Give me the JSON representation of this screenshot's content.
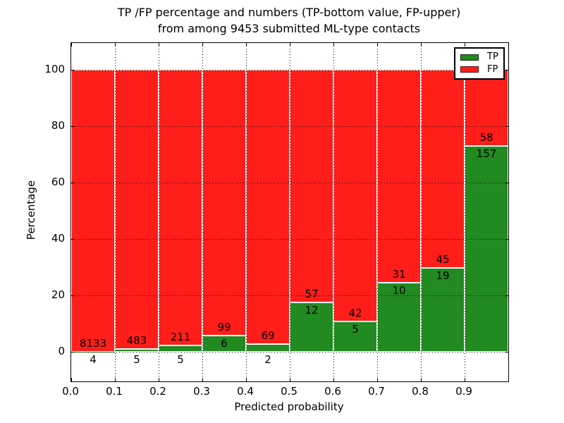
{
  "title": {
    "line1": "TP /FP percentage and numbers (TP-bottom value, FP-upper)",
    "line2": "from among 9453 submitted ML-type contacts"
  },
  "axes": {
    "ylabel": "Percentage",
    "xlabel": "Predicted probability",
    "y_ticks": [
      "0",
      "20",
      "40",
      "60",
      "80",
      "100"
    ],
    "y_tick_values": [
      0,
      20,
      40,
      60,
      80,
      100
    ],
    "x_ticks": [
      "0.0",
      "0.1",
      "0.2",
      "0.3",
      "0.4",
      "0.5",
      "0.6",
      "0.7",
      "0.8",
      "0.9"
    ],
    "ylim": [
      -10,
      110
    ],
    "xlim": [
      0.0,
      1.0
    ],
    "grid": "dotted, drawn above bars"
  },
  "colors": {
    "tp": "#218a21",
    "fp": "#ff1e1a",
    "bar_edge": "#ffffff",
    "text": "#000000",
    "background": "#ffffff"
  },
  "legend": {
    "position": "upper right",
    "items": [
      {
        "label": "TP",
        "color": "#218a21"
      },
      {
        "label": "FP",
        "color": "#ff1e1a"
      }
    ]
  },
  "chart_data": {
    "type": "bar",
    "stacked": true,
    "normalized_to_percent": 100,
    "total_contacts": 9453,
    "categories": [
      "0.0-0.1",
      "0.1-0.2",
      "0.2-0.3",
      "0.3-0.4",
      "0.4-0.5",
      "0.5-0.6",
      "0.6-0.7",
      "0.7-0.8",
      "0.8-0.9",
      "0.9-1.0"
    ],
    "series": [
      {
        "name": "TP",
        "values": [
          4,
          5,
          5,
          6,
          2,
          12,
          5,
          10,
          19,
          157
        ]
      },
      {
        "name": "FP",
        "values": [
          8133,
          483,
          211,
          99,
          69,
          57,
          42,
          31,
          45,
          58
        ]
      }
    ],
    "tp_percent": [
      0.05,
      1.02,
      2.31,
      5.71,
      2.82,
      17.39,
      10.64,
      24.39,
      29.69,
      73.02
    ],
    "title": "TP /FP percentage and numbers (TP-bottom value, FP-upper) from among 9453 submitted ML-type contacts",
    "xlabel": "Predicted probability",
    "ylabel": "Percentage",
    "legend_position": "upper right"
  }
}
